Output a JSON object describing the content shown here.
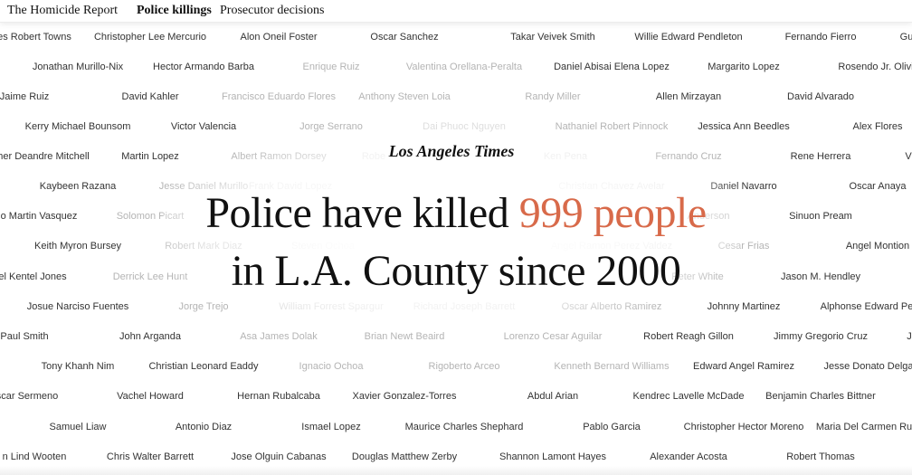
{
  "nav": {
    "items": [
      {
        "label": "The Homicide Report",
        "active": false
      },
      {
        "label": "Police killings",
        "active": true
      },
      {
        "label": "Prosecutor decisions",
        "active": false
      }
    ]
  },
  "hero": {
    "publication": "Los Angeles Times",
    "headline_line1_prefix": "Police have killed",
    "headline_highlight": "999 people",
    "headline_line2": "in L.A. County since 2000",
    "accent_color": "#d86a4a"
  },
  "name_rows": [
    [
      "es Robert Towns",
      "Christopher Lee Mercurio",
      "Alon Oneil Foster",
      "Oscar Sanchez",
      "Takar Veivek Smith",
      "Willie Edward Pendleton",
      "Fernando Fierro",
      "Gu"
    ],
    [
      "Jonathan Murillo-Nix",
      "Hector Armando Barba",
      "Enrique Ruiz",
      "Valentina Orellana-Peralta",
      "Daniel Abisai Elena Lopez",
      "Margarito Lopez",
      "Rosendo Jr. Olivi"
    ],
    [
      "Jaime Ruiz",
      "David Kahler",
      "Francisco Eduardo Flores",
      "Anthony Steven Loia",
      "Randy Miller",
      "Allen Mirzayan",
      "David Alvarado"
    ],
    [
      "Kerry Michael Bounsom",
      "Victor Valencia",
      "Jorge Serrano",
      "Dai Phuoc Nguyen",
      "Nathaniel Robert Pinnock",
      "Jessica Ann Beedles",
      "Alex Flores"
    ],
    [
      "her Deandre Mitchell",
      "Martin Lopez",
      "Albert Ramon Dorsey",
      "Robe",
      "Ken Pena",
      "Fernando Cruz",
      "Rene Herrera",
      "V"
    ],
    [
      "Kaybeen Razana",
      "Jesse Daniel Murillo",
      "Frank David Lopez",
      "Christian Chavez Avelar",
      "Daniel Navarro",
      "Oscar Anaya"
    ],
    [
      "o Martin Vasquez",
      "Solomon Picart",
      "Anderson",
      "Sinuon Pream"
    ],
    [
      "Keith Myron Bursey",
      "Robert Mark Diaz",
      "Steven Ochoa",
      "Angel Ramon Perez Valdez",
      "Cesar Frias",
      "Angel Montion"
    ],
    [
      "el Kentel Jones",
      "Derrick Lee Hunt",
      "Peter White",
      "Jason M. Hendley"
    ],
    [
      "Josue Narciso Fuentes",
      "Jorge Trejo",
      "William Forrest Spargur",
      "Richard Joseph Barrett",
      "Oscar Alberto Ramirez",
      "Johnny Martinez",
      "Alphonse Edward Pe"
    ],
    [
      "Paul Smith",
      "John Arganda",
      "Asa James Dolak",
      "Brian Newt Beaird",
      "Lorenzo Cesar Aguilar",
      "Robert Reagh Gillon",
      "Jimmy Gregorio Cruz",
      "J"
    ],
    [
      "Tony Khanh Nim",
      "Christian Leonard Eaddy",
      "Ignacio Ochoa",
      "Rigoberto Arceo",
      "Kenneth Bernard Williams",
      "Edward Angel Ramirez",
      "Jesse Donato Delga"
    ],
    [
      "scar Sermeno",
      "Vachel Howard",
      "Hernan Rubalcaba",
      "Xavier Gonzalez-Torres",
      "Abdul Arian",
      "Kendrec Lavelle McDade",
      "Benjamin Charles Bittner"
    ],
    [
      "Samuel Liaw",
      "Antonio Diaz",
      "Ismael Lopez",
      "Maurice Charles Shephard",
      "Pablo Garcia",
      "Christopher Hector Moreno",
      "Maria Del Carmen Ru"
    ],
    [
      "n Lind Wooten",
      "Chris Walter Barrett",
      "Jose Olguin Cabanas",
      "Douglas Matthew Zerby",
      "Shannon Lamont Hayes",
      "Alexander Acosta",
      "Robert Thomas"
    ]
  ]
}
